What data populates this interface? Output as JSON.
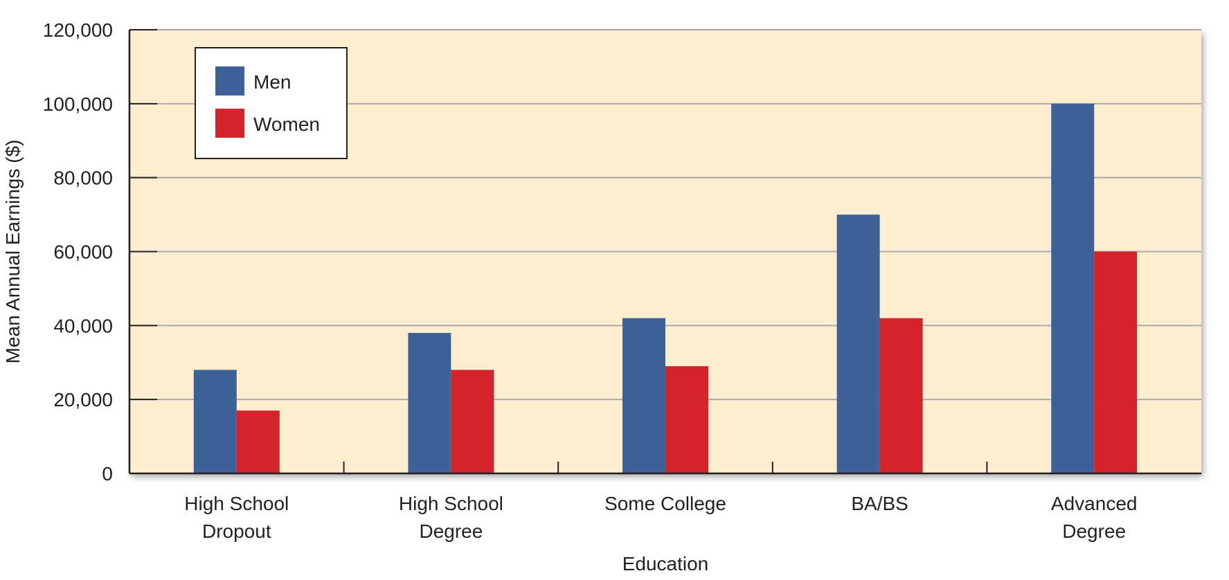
{
  "chart_data": {
    "type": "bar",
    "categories": [
      [
        "High School",
        "Dropout"
      ],
      [
        "High School",
        "Degree"
      ],
      [
        "Some College"
      ],
      [
        "BA/BS"
      ],
      [
        "Advanced",
        "Degree"
      ]
    ],
    "series": [
      {
        "name": "Men",
        "color": "#3e6198",
        "values": [
          28000,
          38000,
          42000,
          70000,
          100000
        ]
      },
      {
        "name": "Women",
        "color": "#d3232b",
        "values": [
          17000,
          28000,
          29000,
          42000,
          60000
        ]
      }
    ],
    "title": "",
    "xlabel": "Education",
    "ylabel": "Mean Annual Earnings ($)",
    "ylim": [
      0,
      120000
    ],
    "yticks": [
      0,
      20000,
      40000,
      60000,
      80000,
      100000,
      120000
    ],
    "ytick_labels": [
      "0",
      "20,000",
      "40,000",
      "60,000",
      "80,000",
      "100,000",
      "120,000"
    ],
    "grid": true,
    "legend_position": "top-left",
    "plot_background": "#fdeed1",
    "gridline_color": "#a6a8ab",
    "axis_color": "#231f20"
  }
}
